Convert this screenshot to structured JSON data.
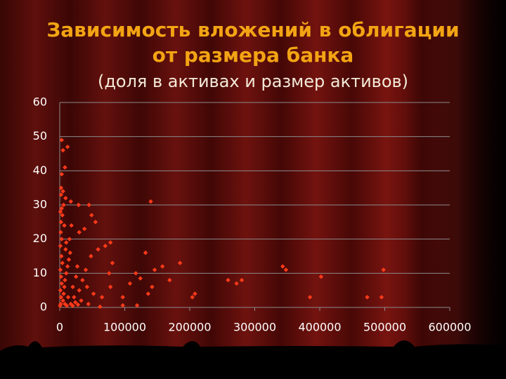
{
  "chart_data": {
    "type": "scatter",
    "title": [
      "Зависимость вложений в облигации",
      "от размера банка"
    ],
    "subtitle": "(доля в активах и размер активов)",
    "color": "#ff3a1a",
    "grid": true,
    "xlim": [
      0,
      600000
    ],
    "xticks": [
      0,
      100000,
      200000,
      300000,
      400000,
      500000,
      600000
    ],
    "ylim": [
      0,
      60
    ],
    "yticks": [
      0,
      10,
      20,
      30,
      40,
      50,
      60
    ],
    "x": [
      140000,
      132000,
      158000,
      146000,
      185000,
      117000,
      124000,
      108000,
      142000,
      169000,
      136000,
      208000,
      204000,
      259000,
      272000,
      280000,
      343000,
      348000,
      402000,
      385000,
      473000,
      495000,
      498000,
      97000,
      97000,
      119000,
      81000,
      70000,
      59000,
      78000,
      55000,
      45000,
      29000,
      17000,
      3000,
      5000,
      12000,
      8000,
      3000,
      2000,
      5000,
      9000,
      49000,
      38000,
      30000,
      76000,
      78000,
      65000,
      62000,
      1000,
      2000,
      1500,
      3000,
      1000,
      2500,
      4000,
      1000,
      2000,
      3000,
      1000,
      2000,
      1500,
      500,
      5000,
      6000,
      7000,
      8000,
      10000,
      12000,
      14000,
      16000,
      10000,
      15000,
      18000,
      20000,
      22000,
      25000,
      27000,
      30000,
      33000,
      35000,
      40000,
      42000,
      44000,
      48000,
      52000,
      8000,
      11000,
      13000,
      17000,
      20000,
      24000,
      28000,
      4000,
      6000,
      7000,
      9000,
      2000,
      3000
    ],
    "values": [
      31,
      16,
      12,
      11,
      13,
      10,
      8.5,
      7,
      6,
      8,
      4,
      4,
      3,
      8,
      7,
      8,
      12,
      11,
      9,
      3,
      3,
      3,
      11,
      3,
      0.6,
      0.6,
      13,
      18,
      17,
      19,
      25,
      30,
      30,
      31,
      49,
      46,
      47,
      41,
      39,
      35,
      34,
      32,
      27,
      23,
      22,
      10,
      6,
      3,
      0.2,
      28,
      25,
      22,
      20,
      18,
      15,
      13,
      11,
      9,
      7,
      5,
      3,
      1,
      0.5,
      2,
      4,
      6,
      8,
      10,
      12,
      14,
      16,
      19,
      20,
      24,
      6,
      3,
      9,
      12,
      5,
      2,
      8,
      11,
      6,
      1,
      15,
      4,
      1,
      0.5,
      3,
      1,
      0.5,
      1.5,
      0.8,
      27,
      30,
      24,
      17,
      33,
      29
    ]
  }
}
